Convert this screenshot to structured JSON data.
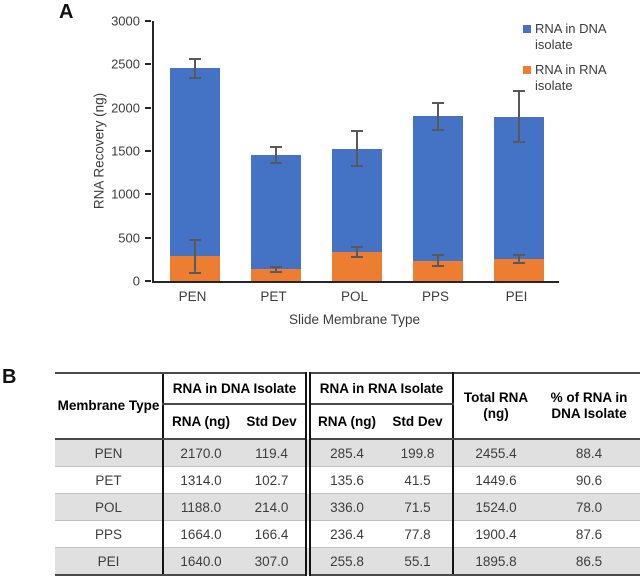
{
  "panel_a": {
    "label": "A"
  },
  "panel_b": {
    "label": "B",
    "table": {
      "headers": {
        "membrane_type": "Membrane Type",
        "group_dna": "RNA in DNA Isolate",
        "group_rna": "RNA in RNA Isolate",
        "rna_ng": "RNA (ng)",
        "std_dev": "Std Dev",
        "total_rna": "Total RNA (ng)",
        "pct_dna": "% of RNA in DNA Isolate"
      },
      "rows": [
        {
          "membrane": "PEN",
          "dna_rna": "2170.0",
          "dna_std": "119.4",
          "rna_rna": "285.4",
          "rna_std": "199.8",
          "total": "2455.4",
          "pct": "88.4"
        },
        {
          "membrane": "PET",
          "dna_rna": "1314.0",
          "dna_std": "102.7",
          "rna_rna": "135.6",
          "rna_std": "41.5",
          "total": "1449.6",
          "pct": "90.6"
        },
        {
          "membrane": "POL",
          "dna_rna": "1188.0",
          "dna_std": "214.0",
          "rna_rna": "336.0",
          "rna_std": "71.5",
          "total": "1524.0",
          "pct": "78.0"
        },
        {
          "membrane": "PPS",
          "dna_rna": "1664.0",
          "dna_std": "166.4",
          "rna_rna": "236.4",
          "rna_std": "77.8",
          "total": "1900.4",
          "pct": "87.6"
        },
        {
          "membrane": "PEI",
          "dna_rna": "1640.0",
          "dna_std": "307.0",
          "rna_rna": "255.8",
          "rna_std": "55.1",
          "total": "1895.8",
          "pct": "86.5"
        }
      ]
    }
  },
  "chart_data": {
    "type": "bar",
    "subtype": "stacked-vertical",
    "categories": [
      "PEN",
      "PET",
      "POL",
      "PPS",
      "PEI"
    ],
    "series": [
      {
        "name": "RNA in DNA isolate",
        "color": "#4472C4",
        "values": [
          2170.0,
          1314.0,
          1188.0,
          1664.0,
          1640.0
        ],
        "std_dev": [
          119.4,
          102.7,
          214.0,
          166.4,
          307.0
        ]
      },
      {
        "name": "RNA in RNA isolate",
        "color": "#ED7D31",
        "values": [
          285.4,
          135.6,
          336.0,
          236.4,
          255.8
        ],
        "std_dev": [
          199.8,
          41.5,
          71.5,
          77.8,
          55.1
        ]
      }
    ],
    "stack_totals": [
      2455.4,
      1449.6,
      1524.0,
      1900.4,
      1895.8
    ],
    "title": "",
    "xlabel": "Slide Membrane Type",
    "ylabel": "RNA Recovery (ng)",
    "ylim": [
      0,
      3000
    ],
    "yticks": [
      0,
      500,
      1000,
      1500,
      2000,
      2500,
      3000
    ],
    "grid": "off",
    "legend_position": "top-right",
    "error_bar_color": "#595959",
    "axis_color": "#262626"
  }
}
